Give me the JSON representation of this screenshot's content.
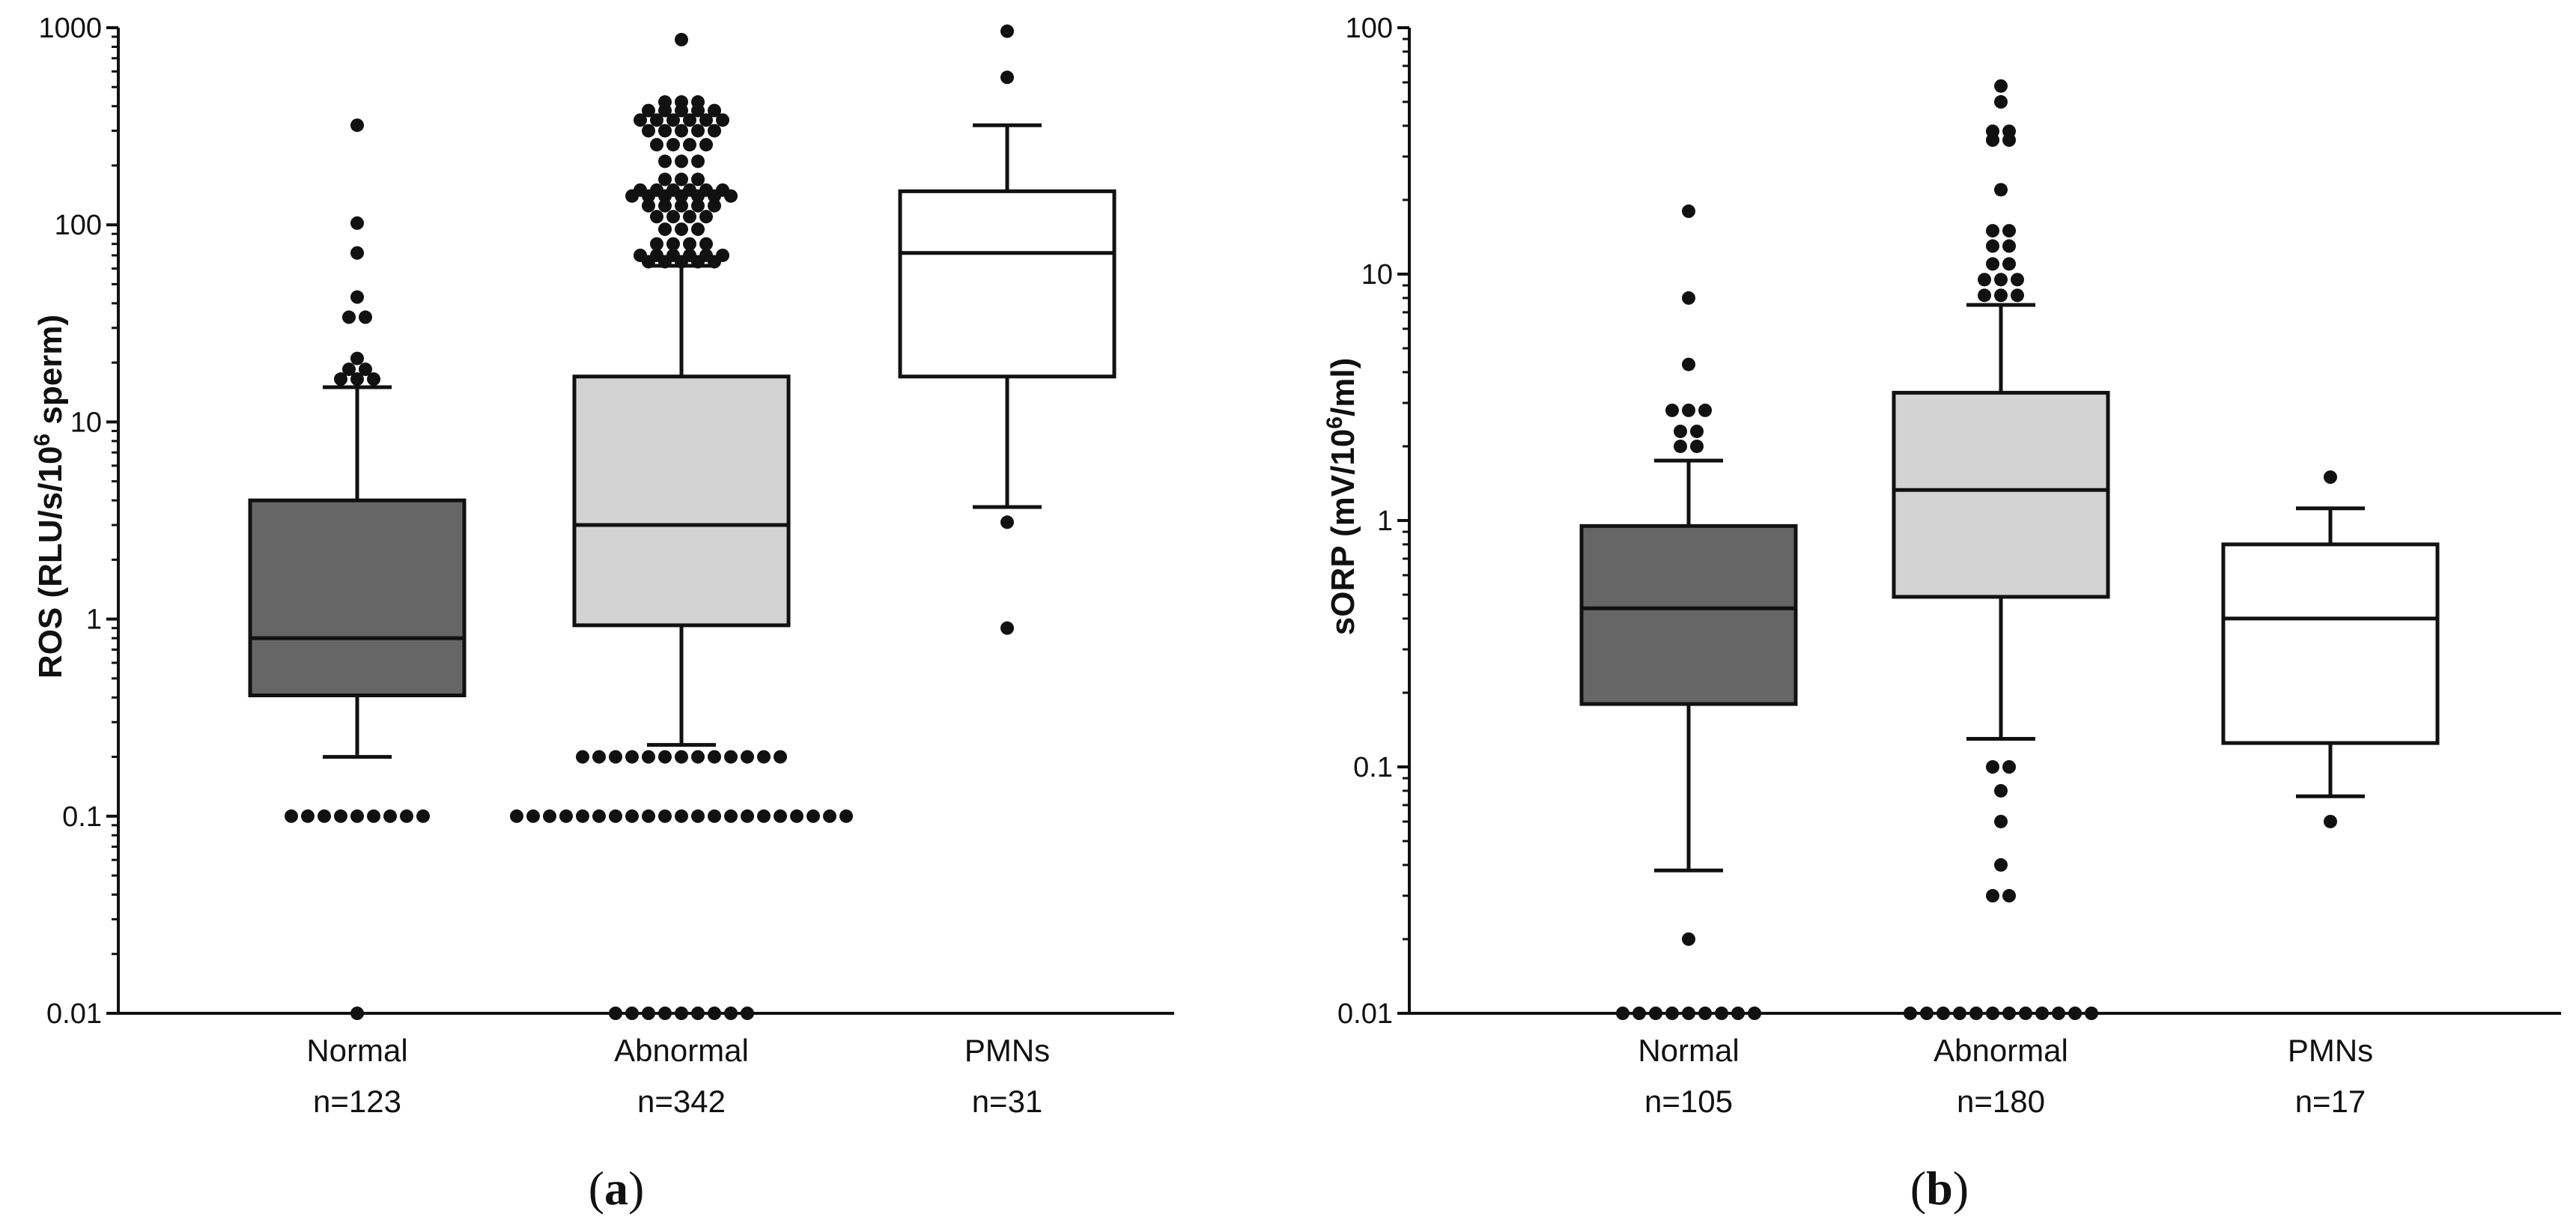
{
  "chart_data": [
    {
      "type": "box",
      "panel": "a",
      "panel_label": "a",
      "yscale": "log",
      "ylim": [
        0.01,
        1000
      ],
      "ylabel": "ROS (RLU/s/10^6 sperm)",
      "ylabel_main": "ROS (RLU/s/10",
      "ylabel_sup": "6",
      "ylabel_end": " sperm)",
      "yticks": [
        0.01,
        0.1,
        1,
        10,
        100,
        1000
      ],
      "ytick_labels": [
        "0.01",
        "0.1",
        "1",
        "10",
        "100",
        "1000"
      ],
      "categories": [
        "Normal",
        "Abnormal",
        "PMNs"
      ],
      "n_labels": [
        "n=123",
        "n=342",
        "n=31"
      ],
      "fill_colors": [
        "#666666",
        "#d3d3d3",
        "#ffffff"
      ],
      "boxes": [
        {
          "whisker_low": 0.2,
          "q1": 0.41,
          "median": 0.8,
          "q3": 4.0,
          "whisker_high": 15.0
        },
        {
          "whisker_low": 0.23,
          "q1": 0.93,
          "median": 3.0,
          "q3": 17.0,
          "whisker_high": 62.0
        },
        {
          "whisker_low": 3.7,
          "q1": 17.0,
          "median": 72.0,
          "q3": 148.0,
          "whisker_high": 320.0
        }
      ],
      "outliers": [
        [
          {
            "v": 320,
            "n": 1
          },
          {
            "v": 102,
            "n": 1
          },
          {
            "v": 72,
            "n": 1
          },
          {
            "v": 43,
            "n": 1
          },
          {
            "v": 34,
            "n": 2
          },
          {
            "v": 21,
            "n": 1
          },
          {
            "v": 18.5,
            "n": 2
          },
          {
            "v": 16.5,
            "n": 3
          },
          {
            "v": 0.1,
            "n": 9
          },
          {
            "v": 0.01,
            "n": 1
          }
        ],
        [
          {
            "v": 870,
            "n": 1
          },
          {
            "v": 420,
            "n": 3
          },
          {
            "v": 380,
            "n": 5
          },
          {
            "v": 340,
            "n": 6
          },
          {
            "v": 300,
            "n": 5
          },
          {
            "v": 255,
            "n": 4
          },
          {
            "v": 210,
            "n": 3
          },
          {
            "v": 170,
            "n": 3
          },
          {
            "v": 150,
            "n": 6
          },
          {
            "v": 140,
            "n": 7
          },
          {
            "v": 125,
            "n": 5
          },
          {
            "v": 110,
            "n": 4
          },
          {
            "v": 95,
            "n": 3
          },
          {
            "v": 80,
            "n": 4
          },
          {
            "v": 70,
            "n": 6
          },
          {
            "v": 65,
            "n": 5
          },
          {
            "v": 0.2,
            "n": 13
          },
          {
            "v": 0.1,
            "n": 21
          },
          {
            "v": 0.01,
            "n": 9
          }
        ],
        [
          {
            "v": 960,
            "n": 1
          },
          {
            "v": 560,
            "n": 1
          },
          {
            "v": 3.1,
            "n": 1
          },
          {
            "v": 0.9,
            "n": 1
          }
        ]
      ]
    },
    {
      "type": "box",
      "panel": "b",
      "panel_label": "b",
      "yscale": "log",
      "ylim": [
        0.01,
        100
      ],
      "ylabel": "sORP (mV/10^6/ml)",
      "ylabel_main": "sORP (mV/10",
      "ylabel_sup": "6",
      "ylabel_end": "/ml)",
      "yticks": [
        0.01,
        0.1,
        1,
        10,
        100
      ],
      "ytick_labels": [
        "0.01",
        "0.1",
        "1",
        "10",
        "100"
      ],
      "categories": [
        "Normal",
        "Abnormal",
        "PMNs"
      ],
      "n_labels": [
        "n=105",
        "n=180",
        "n=17"
      ],
      "fill_colors": [
        "#666666",
        "#d3d3d3",
        "#ffffff"
      ],
      "boxes": [
        {
          "whisker_low": 0.038,
          "q1": 0.18,
          "median": 0.44,
          "q3": 0.95,
          "whisker_high": 1.75
        },
        {
          "whisker_low": 0.13,
          "q1": 0.49,
          "median": 1.33,
          "q3": 3.3,
          "whisker_high": 7.5
        },
        {
          "whisker_low": 0.076,
          "q1": 0.125,
          "median": 0.4,
          "q3": 0.8,
          "whisker_high": 1.12
        }
      ],
      "outliers": [
        [
          {
            "v": 18,
            "n": 1
          },
          {
            "v": 8,
            "n": 1
          },
          {
            "v": 4.3,
            "n": 1
          },
          {
            "v": 2.8,
            "n": 3
          },
          {
            "v": 2.3,
            "n": 2
          },
          {
            "v": 2.0,
            "n": 2
          },
          {
            "v": 0.02,
            "n": 1
          },
          {
            "v": 0.01,
            "n": 9
          }
        ],
        [
          {
            "v": 58,
            "n": 1
          },
          {
            "v": 50,
            "n": 1
          },
          {
            "v": 38,
            "n": 2
          },
          {
            "v": 35,
            "n": 2
          },
          {
            "v": 22,
            "n": 1
          },
          {
            "v": 15,
            "n": 2
          },
          {
            "v": 13,
            "n": 2
          },
          {
            "v": 11,
            "n": 2
          },
          {
            "v": 9.5,
            "n": 3
          },
          {
            "v": 8.2,
            "n": 3
          },
          {
            "v": 0.1,
            "n": 2
          },
          {
            "v": 0.08,
            "n": 1
          },
          {
            "v": 0.06,
            "n": 1
          },
          {
            "v": 0.04,
            "n": 1
          },
          {
            "v": 0.03,
            "n": 2
          },
          {
            "v": 0.01,
            "n": 12
          }
        ],
        [
          {
            "v": 1.5,
            "n": 1
          },
          {
            "v": 0.06,
            "n": 1
          }
        ]
      ]
    }
  ]
}
